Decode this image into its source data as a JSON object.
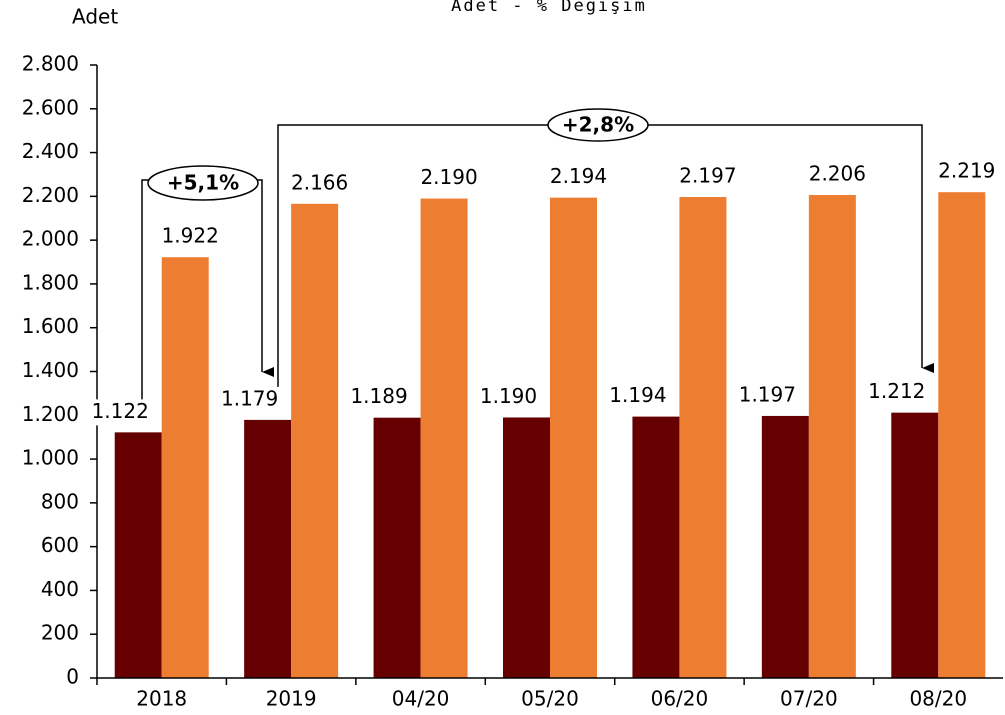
{
  "chart_data": {
    "type": "bar",
    "title": "Adet - % Değişim",
    "y_axis_label": "Adet",
    "annotations": [
      "+5,1%",
      "+2,8%"
    ],
    "categories": [
      "2018",
      "2019",
      "04/20",
      "05/20",
      "06/20",
      "07/20",
      "08/20"
    ],
    "series": [
      {
        "color": "#660000",
        "values": [
          1122,
          1179,
          1189,
          1190,
          1194,
          1197,
          1212
        ],
        "value_labels": [
          "1.122",
          "1.179",
          "1.189",
          "1.190",
          "1.194",
          "1.197",
          "1.212"
        ]
      },
      {
        "color": "#ed7d31",
        "values": [
          1922,
          2166,
          2190,
          2194,
          2197,
          2206,
          2219
        ],
        "value_labels": [
          "1.922",
          "2.166",
          "2.190",
          "2.194",
          "2.197",
          "2.206",
          "2.219"
        ]
      }
    ],
    "ylim": [
      0,
      2800
    ],
    "yticks": [
      0,
      200,
      400,
      600,
      800,
      {
        "value": 1000,
        "label": "1.000"
      },
      {
        "value": 1200,
        "label": "1.200"
      },
      {
        "value": 1400,
        "label": "1.400"
      },
      {
        "value": 1600,
        "label": "1.600"
      },
      {
        "value": 1800,
        "label": "1.800"
      },
      {
        "value": 2000,
        "label": "2.000"
      },
      {
        "value": 2200,
        "label": "2.200"
      },
      {
        "value": 2400,
        "label": "2.400"
      },
      {
        "value": 2600,
        "label": "2.600"
      },
      {
        "value": 2800,
        "label": "2.800"
      }
    ]
  }
}
